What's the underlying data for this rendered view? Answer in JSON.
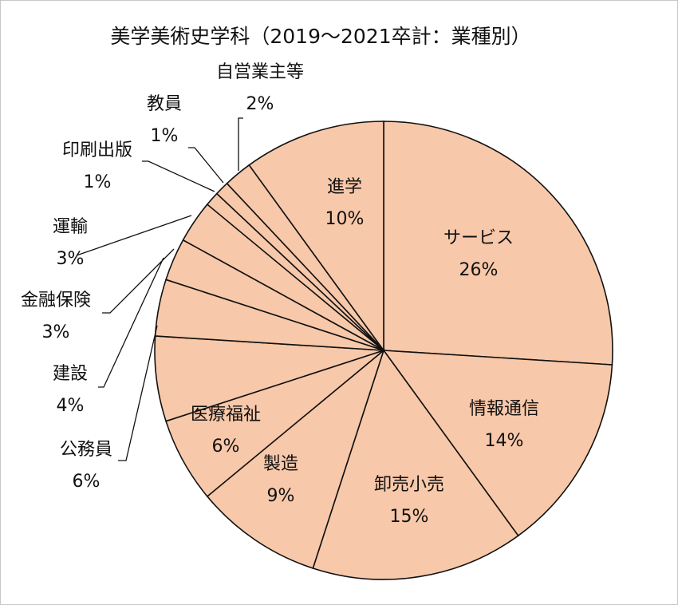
{
  "chart_data": {
    "type": "pie",
    "title": "美学美術史学科（2019～2021卒計：業種別）",
    "start_angle_deg": 0,
    "direction": "clockwise",
    "slice_color": "#f7c8a9",
    "edge_color": "#111111",
    "slices": [
      {
        "label": "サービス",
        "value": 26,
        "value_label": "26%"
      },
      {
        "label": "情報通信",
        "value": 14,
        "value_label": "14%"
      },
      {
        "label": "卸売小売",
        "value": 15,
        "value_label": "15%"
      },
      {
        "label": "製造",
        "value": 9,
        "value_label": "9%"
      },
      {
        "label": "医療福祉",
        "value": 6,
        "value_label": "6%"
      },
      {
        "label": "公務員",
        "value": 6,
        "value_label": "6%"
      },
      {
        "label": "建設",
        "value": 4,
        "value_label": "4%"
      },
      {
        "label": "金融保険",
        "value": 3,
        "value_label": "3%"
      },
      {
        "label": "運輸",
        "value": 3,
        "value_label": "3%"
      },
      {
        "label": "印刷出版",
        "value": 1,
        "value_label": "1%"
      },
      {
        "label": "教員",
        "value": 1,
        "value_label": "1%"
      },
      {
        "label": "自営業主等",
        "value": 2,
        "value_label": "2%"
      },
      {
        "label": "進学",
        "value": 10,
        "value_label": "10%"
      }
    ]
  }
}
